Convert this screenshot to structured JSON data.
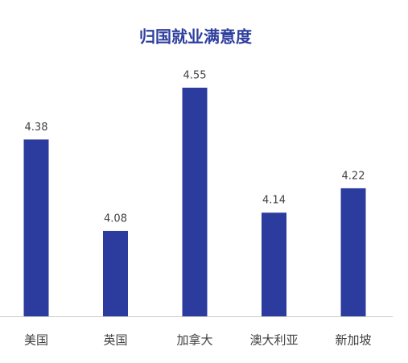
{
  "chart_data": {
    "type": "bar",
    "title": "归国就业满意度",
    "categories": [
      "美国",
      "英国",
      "加拿大",
      "澳大利亚",
      "新加坡"
    ],
    "values": [
      4.38,
      4.08,
      4.55,
      4.14,
      4.22
    ],
    "color": "#2b3c9e",
    "ylim": [
      3.8,
      4.6
    ]
  }
}
